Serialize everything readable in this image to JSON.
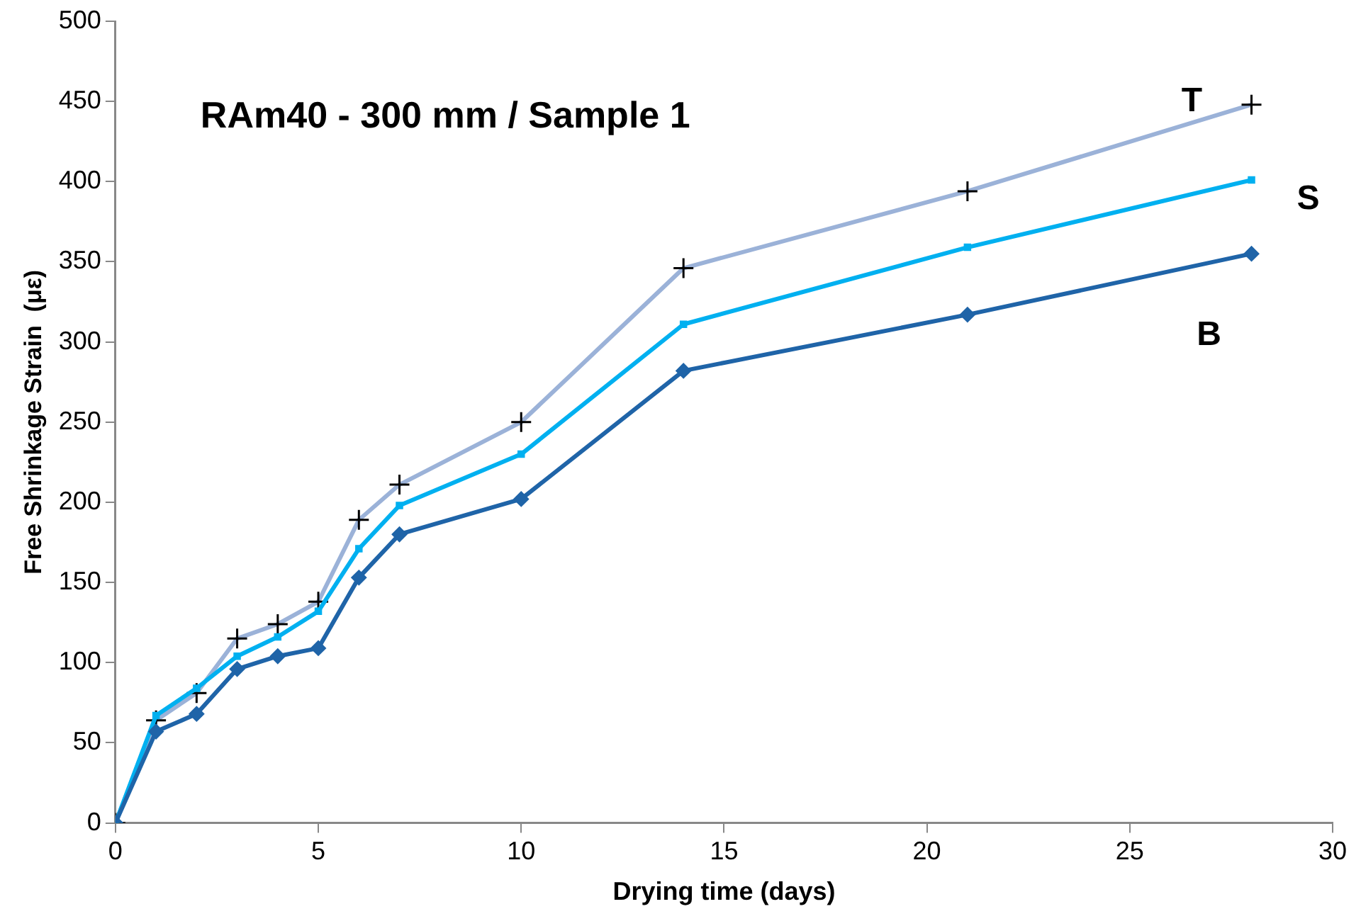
{
  "chart_data": {
    "type": "line",
    "title": "RAm40 - 300 mm / Sample 1",
    "xlabel": "Drying time (days)",
    "ylabel": "Free Shrinkage Strain  (με)",
    "x": [
      0,
      1,
      2,
      3,
      4,
      5,
      6,
      7,
      10,
      14,
      21,
      28
    ],
    "series": [
      {
        "name": "T",
        "color": "#9bb2d8",
        "marker": "cross",
        "values": [
          0,
          64,
          81,
          115,
          124,
          138,
          189,
          211,
          250,
          346,
          394,
          448
        ]
      },
      {
        "name": "S",
        "color": "#00b0f0",
        "marker": "square",
        "values": [
          0,
          67,
          84,
          104,
          116,
          132,
          171,
          198,
          230,
          311,
          359,
          401
        ]
      },
      {
        "name": "B",
        "color": "#1f64a8",
        "marker": "diamond",
        "values": [
          0,
          57,
          68,
          96,
          104,
          109,
          153,
          180,
          202,
          282,
          317,
          355
        ]
      }
    ],
    "xlim": [
      0,
      30
    ],
    "xticks": [
      0,
      5,
      10,
      15,
      20,
      25,
      30
    ],
    "ylim": [
      0,
      500
    ],
    "yticks": [
      0,
      50,
      100,
      150,
      200,
      250,
      300,
      350,
      400,
      450,
      500
    ],
    "grid": false,
    "legend": false,
    "line_style": "solid"
  }
}
